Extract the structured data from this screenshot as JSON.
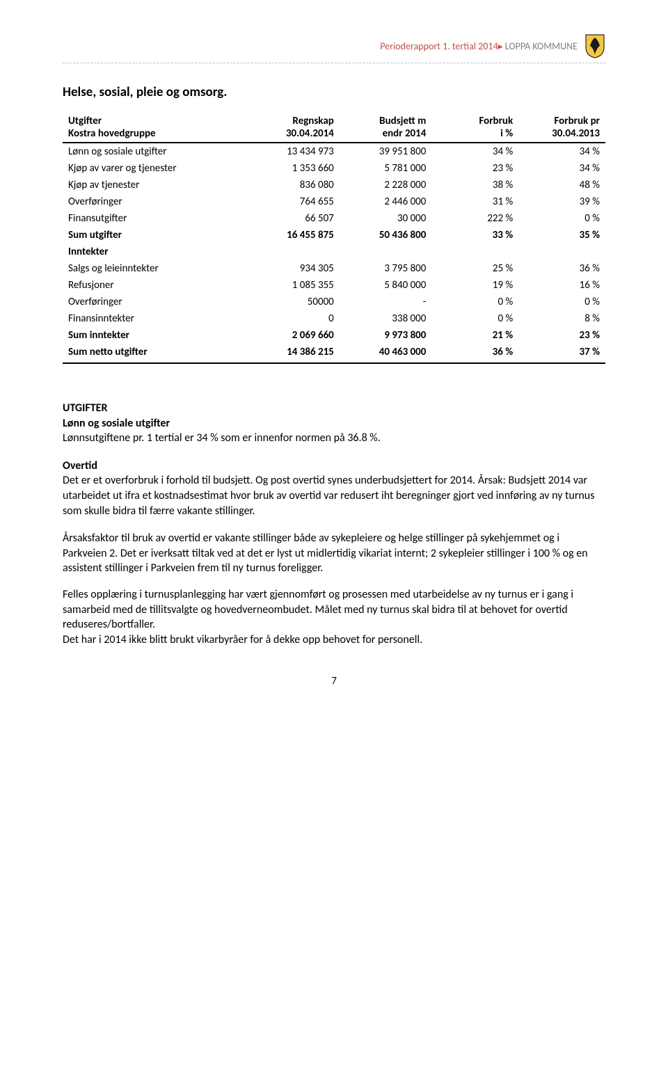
{
  "header": {
    "accent_text": "Perioderapport 1. tertial 2014",
    "gray_text": "LOPPA KOMMUNE",
    "accent_color": "#c0504d",
    "gray_color": "#7f7f7f"
  },
  "section_title": "Helse, sosial, pleie og omsorg.",
  "table": {
    "columns": [
      {
        "line1": "Utgifter",
        "line2": "Kostra hovedgruppe",
        "align": "left"
      },
      {
        "line1": "Regnskap",
        "line2": "30.04.2014",
        "align": "right"
      },
      {
        "line1": "Budsjett m",
        "line2": "endr 2014",
        "align": "right"
      },
      {
        "line1": "Forbruk",
        "line2": "i %",
        "align": "right"
      },
      {
        "line1": "Forbruk pr",
        "line2": "30.04.2013",
        "align": "right"
      }
    ],
    "rows": [
      {
        "label": "Lønn og sosiale utgifter",
        "c2": "13 434 973",
        "c3": "39 951 800",
        "c4": "34 %",
        "c5": "34 %",
        "bold": false
      },
      {
        "label": "Kjøp av varer og tjenester",
        "c2": "1 353 660",
        "c3": "5 781 000",
        "c4": "23 %",
        "c5": "34 %",
        "bold": false
      },
      {
        "label": "Kjøp av tjenester",
        "c2": "836 080",
        "c3": "2 228 000",
        "c4": "38 %",
        "c5": "48 %",
        "bold": false
      },
      {
        "label": "Overføringer",
        "c2": "764 655",
        "c3": "2 446 000",
        "c4": "31 %",
        "c5": "39 %",
        "bold": false
      },
      {
        "label": "Finansutgifter",
        "c2": "66 507",
        "c3": "30 000",
        "c4": "222 %",
        "c5": "0 %",
        "bold": false
      },
      {
        "label": "Sum utgifter",
        "c2": "16 455 875",
        "c3": "50 436 800",
        "c4": "33 %",
        "c5": "35 %",
        "bold": true
      },
      {
        "label": "Inntekter",
        "c2": "",
        "c3": "",
        "c4": "",
        "c5": "",
        "bold": true
      },
      {
        "label": "Salgs og leieinntekter",
        "c2": "934 305",
        "c3": "3 795 800",
        "c4": "25 %",
        "c5": "36 %",
        "bold": false
      },
      {
        "label": "Refusjoner",
        "c2": "1 085 355",
        "c3": "5 840 000",
        "c4": "19 %",
        "c5": "16 %",
        "bold": false
      },
      {
        "label": "Overføringer",
        "c2": "50000",
        "c3": "-",
        "c4": "0 %",
        "c5": "0 %",
        "bold": false
      },
      {
        "label": "Finansinntekter",
        "c2": "0",
        "c3": "338 000",
        "c4": "0 %",
        "c5": "8 %",
        "bold": false
      },
      {
        "label": "Sum inntekter",
        "c2": "2 069 660",
        "c3": "9 973 800",
        "c4": "21 %",
        "c5": "23 %",
        "bold": true
      },
      {
        "label": "Sum netto utgifter",
        "c2": "14 386 215",
        "c3": "40 463 000",
        "c4": "36 %",
        "c5": "37 %",
        "bold": true
      }
    ]
  },
  "body": {
    "utgifter_heading": "UTGIFTER",
    "lonn_heading": "Lønn og sosiale utgifter",
    "lonn_text": "Lønnsutgiftene pr. 1 tertial er 34 % som er innenfor normen på 36.8 %.",
    "overtid_heading": "Overtid",
    "overtid_p1": "Det er et overforbruk i forhold til budsjett. Og post overtid synes underbudsjettert for 2014. Årsak: Budsjett 2014 var utarbeidet ut ifra et kostnadsestimat hvor bruk av overtid var redusert iht beregninger gjort ved innføring av ny turnus som skulle bidra til færre vakante stillinger.",
    "overtid_p2": "Årsaksfaktor til bruk av overtid er vakante stillinger både av sykepleiere og helge stillinger på sykehjemmet og i Parkveien 2. Det er iverksatt tiltak ved at det er lyst ut midlertidig vikariat internt; 2 sykepleier stillinger i 100 % og en assistent stillinger i Parkveien frem til ny turnus foreligger.",
    "overtid_p3": "Felles opplæring i turnusplanlegging har vært gjennomført og prosessen med utarbeidelse av ny turnus er i gang i samarbeid med de tillitsvalgte og hovedverneombudet. Målet med ny turnus skal bidra til at behovet for overtid reduseres/bortfaller.",
    "overtid_p4": "Det har i 2014 ikke blitt brukt vikarbyråer for å dekke opp behovet for personell."
  },
  "page_number": "7"
}
